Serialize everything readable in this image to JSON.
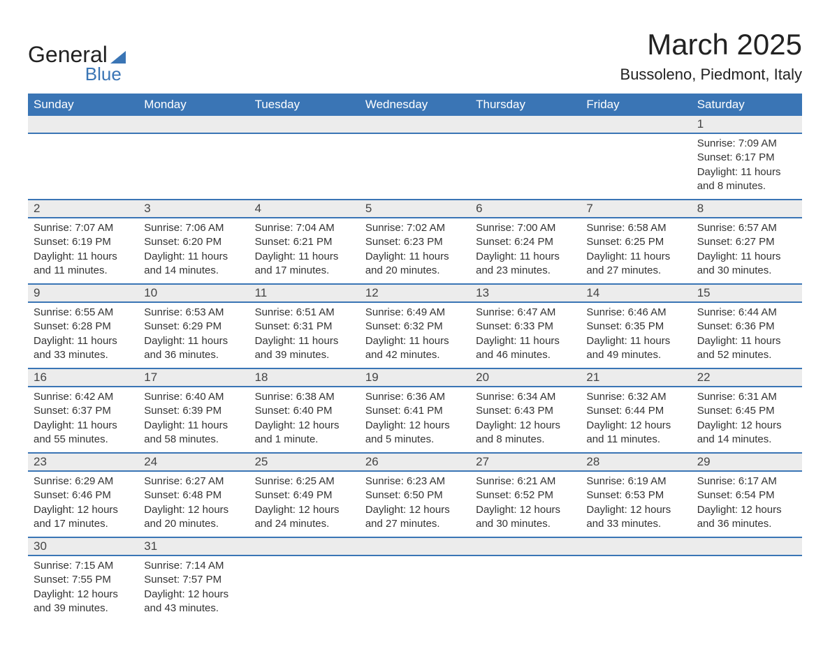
{
  "logo": {
    "word1": "General",
    "word2": "Blue"
  },
  "title": "March 2025",
  "location": "Bussoleno, Piedmont, Italy",
  "colors": {
    "header_bg": "#3a75b5",
    "header_text": "#ffffff",
    "daynum_bg": "#ececec",
    "body_text": "#333333",
    "row_divider": "#3a75b5",
    "page_bg": "#ffffff"
  },
  "typography": {
    "title_fontsize": 42,
    "location_fontsize": 22,
    "weekday_fontsize": 17,
    "daynum_fontsize": 17,
    "detail_fontsize": 15
  },
  "weekdays": [
    "Sunday",
    "Monday",
    "Tuesday",
    "Wednesday",
    "Thursday",
    "Friday",
    "Saturday"
  ],
  "weeks": [
    [
      null,
      null,
      null,
      null,
      null,
      null,
      {
        "day": "1",
        "sunrise": "Sunrise: 7:09 AM",
        "sunset": "Sunset: 6:17 PM",
        "dl1": "Daylight: 11 hours",
        "dl2": "and 8 minutes."
      }
    ],
    [
      {
        "day": "2",
        "sunrise": "Sunrise: 7:07 AM",
        "sunset": "Sunset: 6:19 PM",
        "dl1": "Daylight: 11 hours",
        "dl2": "and 11 minutes."
      },
      {
        "day": "3",
        "sunrise": "Sunrise: 7:06 AM",
        "sunset": "Sunset: 6:20 PM",
        "dl1": "Daylight: 11 hours",
        "dl2": "and 14 minutes."
      },
      {
        "day": "4",
        "sunrise": "Sunrise: 7:04 AM",
        "sunset": "Sunset: 6:21 PM",
        "dl1": "Daylight: 11 hours",
        "dl2": "and 17 minutes."
      },
      {
        "day": "5",
        "sunrise": "Sunrise: 7:02 AM",
        "sunset": "Sunset: 6:23 PM",
        "dl1": "Daylight: 11 hours",
        "dl2": "and 20 minutes."
      },
      {
        "day": "6",
        "sunrise": "Sunrise: 7:00 AM",
        "sunset": "Sunset: 6:24 PM",
        "dl1": "Daylight: 11 hours",
        "dl2": "and 23 minutes."
      },
      {
        "day": "7",
        "sunrise": "Sunrise: 6:58 AM",
        "sunset": "Sunset: 6:25 PM",
        "dl1": "Daylight: 11 hours",
        "dl2": "and 27 minutes."
      },
      {
        "day": "8",
        "sunrise": "Sunrise: 6:57 AM",
        "sunset": "Sunset: 6:27 PM",
        "dl1": "Daylight: 11 hours",
        "dl2": "and 30 minutes."
      }
    ],
    [
      {
        "day": "9",
        "sunrise": "Sunrise: 6:55 AM",
        "sunset": "Sunset: 6:28 PM",
        "dl1": "Daylight: 11 hours",
        "dl2": "and 33 minutes."
      },
      {
        "day": "10",
        "sunrise": "Sunrise: 6:53 AM",
        "sunset": "Sunset: 6:29 PM",
        "dl1": "Daylight: 11 hours",
        "dl2": "and 36 minutes."
      },
      {
        "day": "11",
        "sunrise": "Sunrise: 6:51 AM",
        "sunset": "Sunset: 6:31 PM",
        "dl1": "Daylight: 11 hours",
        "dl2": "and 39 minutes."
      },
      {
        "day": "12",
        "sunrise": "Sunrise: 6:49 AM",
        "sunset": "Sunset: 6:32 PM",
        "dl1": "Daylight: 11 hours",
        "dl2": "and 42 minutes."
      },
      {
        "day": "13",
        "sunrise": "Sunrise: 6:47 AM",
        "sunset": "Sunset: 6:33 PM",
        "dl1": "Daylight: 11 hours",
        "dl2": "and 46 minutes."
      },
      {
        "day": "14",
        "sunrise": "Sunrise: 6:46 AM",
        "sunset": "Sunset: 6:35 PM",
        "dl1": "Daylight: 11 hours",
        "dl2": "and 49 minutes."
      },
      {
        "day": "15",
        "sunrise": "Sunrise: 6:44 AM",
        "sunset": "Sunset: 6:36 PM",
        "dl1": "Daylight: 11 hours",
        "dl2": "and 52 minutes."
      }
    ],
    [
      {
        "day": "16",
        "sunrise": "Sunrise: 6:42 AM",
        "sunset": "Sunset: 6:37 PM",
        "dl1": "Daylight: 11 hours",
        "dl2": "and 55 minutes."
      },
      {
        "day": "17",
        "sunrise": "Sunrise: 6:40 AM",
        "sunset": "Sunset: 6:39 PM",
        "dl1": "Daylight: 11 hours",
        "dl2": "and 58 minutes."
      },
      {
        "day": "18",
        "sunrise": "Sunrise: 6:38 AM",
        "sunset": "Sunset: 6:40 PM",
        "dl1": "Daylight: 12 hours",
        "dl2": "and 1 minute."
      },
      {
        "day": "19",
        "sunrise": "Sunrise: 6:36 AM",
        "sunset": "Sunset: 6:41 PM",
        "dl1": "Daylight: 12 hours",
        "dl2": "and 5 minutes."
      },
      {
        "day": "20",
        "sunrise": "Sunrise: 6:34 AM",
        "sunset": "Sunset: 6:43 PM",
        "dl1": "Daylight: 12 hours",
        "dl2": "and 8 minutes."
      },
      {
        "day": "21",
        "sunrise": "Sunrise: 6:32 AM",
        "sunset": "Sunset: 6:44 PM",
        "dl1": "Daylight: 12 hours",
        "dl2": "and 11 minutes."
      },
      {
        "day": "22",
        "sunrise": "Sunrise: 6:31 AM",
        "sunset": "Sunset: 6:45 PM",
        "dl1": "Daylight: 12 hours",
        "dl2": "and 14 minutes."
      }
    ],
    [
      {
        "day": "23",
        "sunrise": "Sunrise: 6:29 AM",
        "sunset": "Sunset: 6:46 PM",
        "dl1": "Daylight: 12 hours",
        "dl2": "and 17 minutes."
      },
      {
        "day": "24",
        "sunrise": "Sunrise: 6:27 AM",
        "sunset": "Sunset: 6:48 PM",
        "dl1": "Daylight: 12 hours",
        "dl2": "and 20 minutes."
      },
      {
        "day": "25",
        "sunrise": "Sunrise: 6:25 AM",
        "sunset": "Sunset: 6:49 PM",
        "dl1": "Daylight: 12 hours",
        "dl2": "and 24 minutes."
      },
      {
        "day": "26",
        "sunrise": "Sunrise: 6:23 AM",
        "sunset": "Sunset: 6:50 PM",
        "dl1": "Daylight: 12 hours",
        "dl2": "and 27 minutes."
      },
      {
        "day": "27",
        "sunrise": "Sunrise: 6:21 AM",
        "sunset": "Sunset: 6:52 PM",
        "dl1": "Daylight: 12 hours",
        "dl2": "and 30 minutes."
      },
      {
        "day": "28",
        "sunrise": "Sunrise: 6:19 AM",
        "sunset": "Sunset: 6:53 PM",
        "dl1": "Daylight: 12 hours",
        "dl2": "and 33 minutes."
      },
      {
        "day": "29",
        "sunrise": "Sunrise: 6:17 AM",
        "sunset": "Sunset: 6:54 PM",
        "dl1": "Daylight: 12 hours",
        "dl2": "and 36 minutes."
      }
    ],
    [
      {
        "day": "30",
        "sunrise": "Sunrise: 7:15 AM",
        "sunset": "Sunset: 7:55 PM",
        "dl1": "Daylight: 12 hours",
        "dl2": "and 39 minutes."
      },
      {
        "day": "31",
        "sunrise": "Sunrise: 7:14 AM",
        "sunset": "Sunset: 7:57 PM",
        "dl1": "Daylight: 12 hours",
        "dl2": "and 43 minutes."
      },
      null,
      null,
      null,
      null,
      null
    ]
  ]
}
